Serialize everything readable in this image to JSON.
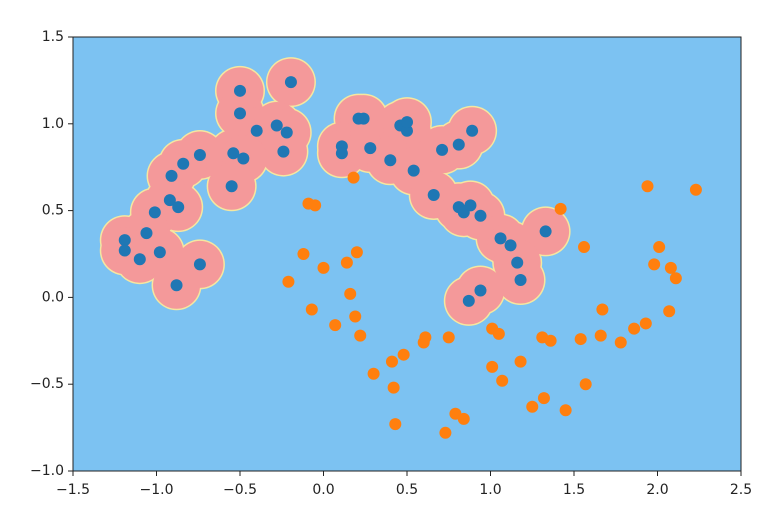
{
  "chart_data": {
    "type": "scatter",
    "background_color": "#7cc2f2",
    "region_color": "#f4999a",
    "xlim": [
      -1.5,
      2.5
    ],
    "ylim": [
      -1.0,
      1.5
    ],
    "xticks": [
      {
        "value": -1.5,
        "label": "−1.5"
      },
      {
        "value": -1.0,
        "label": "−1.0"
      },
      {
        "value": -0.5,
        "label": "−0.5"
      },
      {
        "value": 0,
        "label": "0.0"
      },
      0.5,
      {
        "value": 1.0,
        "label": "1.0"
      },
      1.5,
      {
        "value": 2.0,
        "label": "2.0"
      },
      2.5
    ],
    "yticks": [
      {
        "value": -1.0,
        "label": "−1.0"
      },
      {
        "value": -0.5,
        "label": "−0.5"
      },
      {
        "value": 0,
        "label": "0.0"
      },
      0.5,
      {
        "value": 1.0,
        "label": "1.0"
      },
      1.5
    ],
    "series": [
      {
        "color": "#1f77b4",
        "x": [
          -0.195,
          -0.5,
          -0.5,
          -0.4,
          -0.28,
          -0.22,
          -0.24,
          -0.54,
          -0.48,
          -0.55,
          -0.74,
          -0.84,
          -0.91,
          -0.92,
          -0.87,
          -1.01,
          -1.06,
          -1.19,
          -1.19,
          -1.1,
          -0.98,
          -0.74,
          -0.88,
          0.21,
          0.24,
          0.11,
          0.11,
          0.28,
          0.46,
          0.5,
          0.5,
          0.4,
          0.54,
          0.71,
          0.81,
          0.89,
          0.66,
          0.81,
          0.84,
          0.88,
          0.94,
          1.06,
          1.12,
          1.33,
          1.16,
          1.18,
          0.94,
          0.87
        ],
        "values": [
          1.24,
          1.19,
          1.06,
          0.96,
          0.99,
          0.95,
          0.84,
          0.83,
          0.8,
          0.64,
          0.82,
          0.77,
          0.7,
          0.56,
          0.52,
          0.49,
          0.37,
          0.33,
          0.27,
          0.22,
          0.26,
          0.19,
          0.07,
          1.03,
          1.03,
          0.87,
          0.83,
          0.86,
          0.99,
          0.96,
          1.01,
          0.79,
          0.73,
          0.85,
          0.88,
          0.96,
          0.59,
          0.52,
          0.49,
          0.53,
          0.47,
          0.34,
          0.3,
          0.38,
          0.2,
          0.1,
          0.04,
          -0.02
        ]
      },
      {
        "color": "#ff7f0e",
        "x": [
          1.94,
          2.23,
          1.42,
          0.18,
          -0.09,
          -0.05,
          1.56,
          2.01,
          1.98,
          2.08,
          2.11,
          -0.12,
          0.2,
          0.14,
          0.0,
          -0.21,
          0.16,
          -0.07,
          0.19,
          0.07,
          0.22,
          2.07,
          1.67,
          1.93,
          1.86,
          1.78,
          1.66,
          1.54,
          1.31,
          1.36,
          1.01,
          1.05,
          0.61,
          0.6,
          0.75,
          0.48,
          0.41,
          0.3,
          1.18,
          1.01,
          1.07,
          1.57,
          0.42,
          1.32,
          1.25,
          1.45,
          0.79,
          0.84,
          0.43,
          0.73
        ],
        "values": [
          0.64,
          0.62,
          0.51,
          0.69,
          0.54,
          0.53,
          0.29,
          0.29,
          0.19,
          0.17,
          0.11,
          0.25,
          0.26,
          0.2,
          0.17,
          0.09,
          0.02,
          -0.07,
          -0.11,
          -0.16,
          -0.22,
          -0.08,
          -0.07,
          -0.15,
          -0.18,
          -0.26,
          -0.22,
          -0.24,
          -0.23,
          -0.25,
          -0.18,
          -0.21,
          -0.23,
          -0.26,
          -0.23,
          -0.33,
          -0.37,
          -0.44,
          -0.37,
          -0.4,
          -0.48,
          -0.5,
          -0.52,
          -0.58,
          -0.63,
          -0.65,
          -0.67,
          -0.7,
          -0.73,
          -0.78
        ]
      }
    ]
  }
}
